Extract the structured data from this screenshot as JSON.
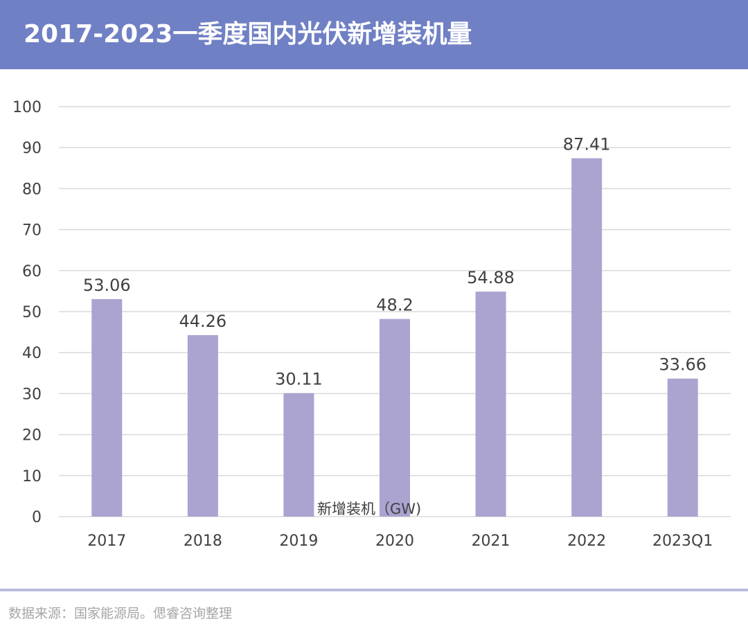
{
  "header": {
    "title": "2017-2023一季度国内光伏新增装机量"
  },
  "colors": {
    "header_bg": "#7080c4",
    "bar": "#aba3d0",
    "grid": "#d9d9d9",
    "text": "#404040",
    "source": "#a6a6a6"
  },
  "chart_data": {
    "type": "bar",
    "categories": [
      "2017",
      "2018",
      "2019",
      "2020",
      "2021",
      "2022",
      "2023Q1"
    ],
    "series": [
      {
        "name": "新增装机（GW)",
        "values": [
          53.06,
          44.26,
          30.11,
          48.2,
          54.88,
          87.41,
          33.66
        ],
        "labels": [
          "53.06",
          "44.26",
          "30.11",
          "48.2",
          "54.88",
          "87.41",
          "33.66"
        ]
      }
    ],
    "ylim": [
      0,
      100
    ],
    "yticks": [
      0,
      10,
      20,
      30,
      40,
      50,
      60,
      70,
      80,
      90,
      100
    ],
    "grid": true,
    "legend": "bottom-center"
  },
  "footer": {
    "source": "数据来源：国家能源局。偲睿咨询整理"
  }
}
